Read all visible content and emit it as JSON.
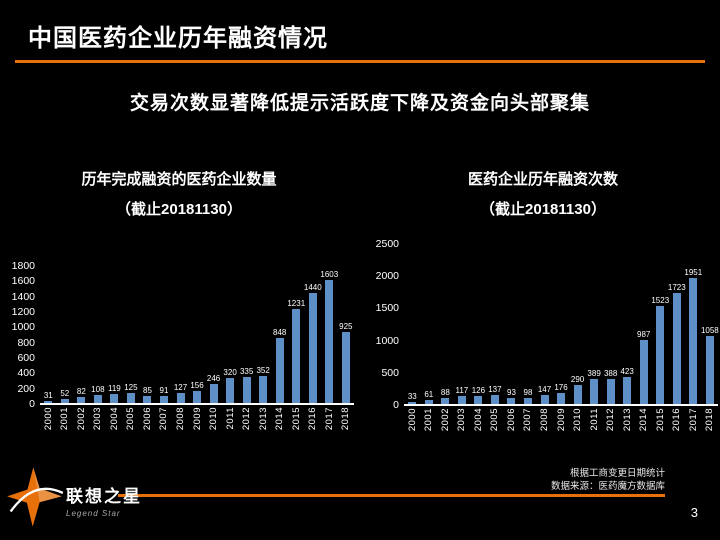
{
  "slide": {
    "title": "中国医药企业历年融资情况",
    "subtitle": "交易次数显著降低提示活跃度下降及资金向头部聚集",
    "page_number": "3",
    "footnote_line1": "根据工商变更日期统计",
    "footnote_line2": "数据来源：医药魔方数据库",
    "logo": {
      "name_cn": "联想之星",
      "name_en": "Legend Star"
    }
  },
  "icons": {
    "logo": "four-point-star-icon"
  },
  "colors": {
    "background": "#000000",
    "accent_orange": "#E8700A",
    "bar_blue": "#5E8FC6",
    "text_white": "#FFFFFF"
  },
  "chart_data": [
    {
      "type": "bar",
      "title": "历年完成融资的医药企业数量",
      "subtitle": "（截止20181130）",
      "categories": [
        "2000",
        "2001",
        "2002",
        "2003",
        "2004",
        "2005",
        "2006",
        "2007",
        "2008",
        "2009",
        "2010",
        "2011",
        "2012",
        "2013",
        "2014",
        "2015",
        "2016",
        "2017",
        "2018"
      ],
      "values": [
        31,
        52,
        82,
        108,
        119,
        125,
        85,
        91,
        127,
        156,
        246,
        320,
        335,
        352,
        848,
        1231,
        1440,
        1603,
        925
      ],
      "xlabel": "",
      "ylabel": "",
      "ylim": [
        0,
        1800
      ],
      "yticks": [
        0,
        200,
        400,
        600,
        800,
        1000,
        1200,
        1400,
        1600,
        1800
      ],
      "grid": false,
      "legend": "none",
      "bar_color": "#5E8FC6",
      "data_labels": true
    },
    {
      "type": "bar",
      "title": "医药企业历年融资次数",
      "subtitle": "（截止20181130）",
      "categories": [
        "2000",
        "2001",
        "2002",
        "2003",
        "2004",
        "2005",
        "2006",
        "2007",
        "2008",
        "2009",
        "2010",
        "2011",
        "2012",
        "2013",
        "2014",
        "2015",
        "2016",
        "2017",
        "2018"
      ],
      "values": [
        33,
        61,
        88,
        117,
        126,
        137,
        93,
        98,
        147,
        176,
        290,
        389,
        388,
        423,
        987,
        1523,
        1723,
        1951,
        1058
      ],
      "xlabel": "",
      "ylabel": "",
      "ylim": [
        0,
        2500
      ],
      "yticks": [
        0,
        500,
        1000,
        1500,
        2000,
        2500
      ],
      "grid": false,
      "legend": "none",
      "bar_color": "#5E8FC6",
      "data_labels": true
    }
  ]
}
